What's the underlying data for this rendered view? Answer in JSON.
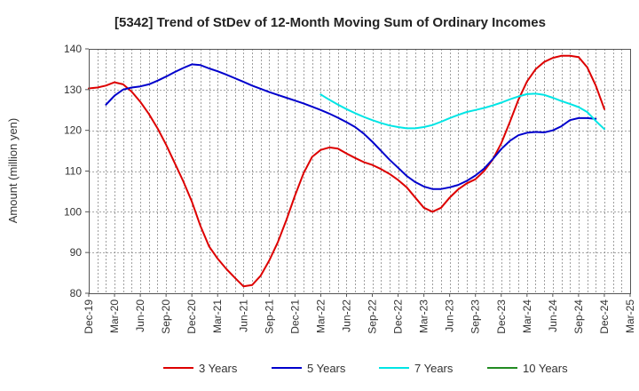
{
  "chart_data": {
    "type": "line",
    "title": "[5342]  Trend of StDev of 12-Month Moving Sum of Ordinary Incomes",
    "xlabel": "",
    "ylabel": "Amount (million yen)",
    "ylim": [
      80,
      140
    ],
    "yticks": [
      80,
      90,
      100,
      110,
      120,
      130,
      140
    ],
    "xticks": [
      "Dec-19",
      "Mar-20",
      "Jun-20",
      "Sep-20",
      "Dec-20",
      "Mar-21",
      "Jun-21",
      "Sep-21",
      "Dec-21",
      "Mar-22",
      "Jun-22",
      "Sep-22",
      "Dec-22",
      "Mar-23",
      "Jun-23",
      "Sep-23",
      "Dec-23",
      "Mar-24",
      "Jun-24",
      "Sep-24",
      "Dec-24",
      "Mar-25"
    ],
    "grid": true,
    "legend_position": "bottom",
    "series": [
      {
        "name": "3 Years",
        "color": "#dd0000",
        "start_index": 0,
        "values": [
          130.3,
          130.5,
          131.0,
          131.8,
          131.3,
          129.5,
          127.0,
          124.0,
          120.5,
          116.5,
          112.0,
          107.5,
          102.5,
          96.5,
          91.5,
          88.5,
          86.0,
          83.8,
          81.7,
          82.0,
          84.3,
          88.0,
          92.5,
          98.0,
          104.0,
          109.5,
          113.5,
          115.2,
          115.8,
          115.5,
          114.3,
          113.2,
          112.2,
          111.5,
          110.5,
          109.3,
          107.8,
          106.0,
          103.5,
          101.0,
          100.0,
          101.0,
          103.5,
          105.5,
          107.0,
          108.0,
          110.0,
          112.8,
          116.8,
          122.0,
          127.5,
          132.0,
          135.0,
          136.8,
          137.8,
          138.3,
          138.3,
          138.0,
          135.5,
          131.0,
          125.2
        ]
      },
      {
        "name": "5 Years",
        "color": "#0000cc",
        "start_index": 2,
        "values": [
          126.3,
          128.5,
          130.0,
          130.5,
          130.8,
          131.3,
          132.2,
          133.2,
          134.3,
          135.3,
          136.2,
          136.0,
          135.2,
          134.5,
          133.7,
          132.8,
          131.9,
          131.0,
          130.2,
          129.4,
          128.7,
          128.0,
          127.3,
          126.6,
          125.8,
          125.0,
          124.1,
          123.1,
          122.0,
          120.8,
          119.2,
          117.2,
          115.0,
          112.8,
          110.8,
          108.8,
          107.3,
          106.2,
          105.6,
          105.6,
          106.0,
          106.6,
          107.6,
          108.9,
          110.6,
          112.9,
          115.4,
          117.4,
          118.8,
          119.4,
          119.6,
          119.5,
          120.0,
          121.0,
          122.5,
          123.0,
          123.0,
          122.8
        ]
      },
      {
        "name": "7 Years",
        "color": "#00e5e5",
        "start_index": 27,
        "values": [
          128.8,
          127.5,
          126.3,
          125.2,
          124.2,
          123.3,
          122.5,
          121.8,
          121.2,
          120.8,
          120.5,
          120.5,
          120.8,
          121.3,
          122.1,
          123.0,
          123.8,
          124.5,
          125.0,
          125.5,
          126.1,
          126.8,
          127.6,
          128.3,
          128.9,
          129.0,
          128.7,
          128.0,
          127.2,
          126.5,
          125.7,
          124.5,
          122.3,
          120.3
        ]
      },
      {
        "name": "10 Years",
        "color": "#228b22",
        "start_index": 0,
        "values": []
      }
    ]
  }
}
